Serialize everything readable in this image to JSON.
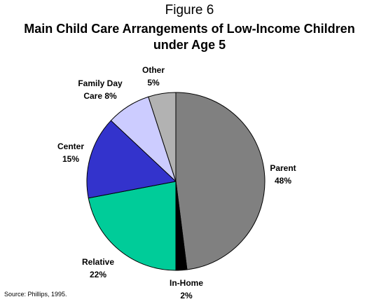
{
  "figure_label": "Figure 6",
  "chart_data": {
    "type": "pie",
    "title_lines": [
      "Main Child Care Arrangements of Low-Income Children",
      "under Age 5"
    ],
    "slices": [
      {
        "label_lines": [
          "Parent",
          "48%"
        ],
        "value": 48,
        "color": "#808080"
      },
      {
        "label_lines": [
          "In-Home",
          "2%"
        ],
        "value": 2,
        "color": "#000000"
      },
      {
        "label_lines": [
          "Relative",
          "22%"
        ],
        "value": 22,
        "color": "#00cc99"
      },
      {
        "label_lines": [
          "Center",
          "15%"
        ],
        "value": 15,
        "color": "#3333cc"
      },
      {
        "label_lines": [
          "Family Day",
          "Care 8%"
        ],
        "value": 8,
        "color": "#ccccff"
      },
      {
        "label_lines": [
          "Other",
          "5%"
        ],
        "value": 5,
        "color": "#b2b2b2"
      }
    ],
    "start_angle_deg": 0,
    "direction": "clockwise"
  },
  "source": "Source: Phillips, 1995."
}
